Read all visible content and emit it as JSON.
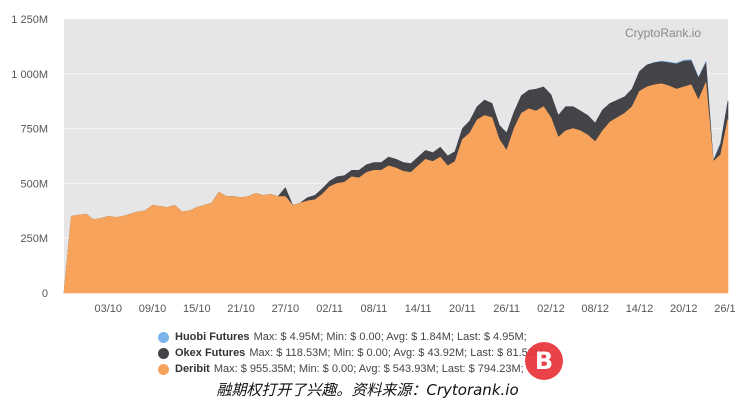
{
  "watermark_text": "CryptoRank.io",
  "caption": "融期权打开了兴趣。资料来源：Crytorank.io",
  "watermark_logo": {
    "icon": "bitcoin-b-icon",
    "color": "#e8333a"
  },
  "chart_data": {
    "type": "area",
    "stacked": true,
    "title": "",
    "xlabel": "",
    "ylabel": "",
    "ylim": [
      0,
      1250
    ],
    "yticks": [
      0,
      250,
      500,
      750,
      1000,
      1250
    ],
    "ytick_labels": [
      "0",
      "250M",
      "500M",
      "750M",
      "1 000M",
      "1 250M"
    ],
    "xlim": [
      0,
      90
    ],
    "xticks": [
      6,
      12,
      18,
      24,
      30,
      36,
      42,
      48,
      54,
      60,
      66,
      72,
      78,
      84,
      90
    ],
    "xtick_labels": [
      "03/10",
      "09/10",
      "15/10",
      "21/10",
      "27/10",
      "02/11",
      "08/11",
      "14/11",
      "20/11",
      "26/11",
      "02/12",
      "08/12",
      "14/12",
      "20/12",
      "26/12"
    ],
    "x": [
      0,
      1,
      2,
      3,
      4,
      5,
      6,
      7,
      8,
      9,
      10,
      11,
      12,
      13,
      14,
      15,
      16,
      17,
      18,
      19,
      20,
      21,
      22,
      23,
      24,
      25,
      26,
      27,
      28,
      29,
      30,
      31,
      32,
      33,
      34,
      35,
      36,
      37,
      38,
      39,
      40,
      41,
      42,
      43,
      44,
      45,
      46,
      47,
      48,
      49,
      50,
      51,
      52,
      53,
      54,
      55,
      56,
      57,
      58,
      59,
      60,
      61,
      62,
      63,
      64,
      65,
      66,
      67,
      68,
      69,
      70,
      71,
      72,
      73,
      74,
      75,
      76,
      77,
      78,
      79,
      80,
      81,
      82,
      83,
      84,
      85,
      86,
      87,
      88,
      89,
      90
    ],
    "grid": true,
    "legend_position": "bottom",
    "series": [
      {
        "name": "Huobi Futures",
        "color": "#7cb5ec",
        "stats": "Max: $ 4.95M; Min: $ 0.00; Avg: $ 1.84M; Last: $ 4.95M;",
        "values": [
          0,
          0,
          0,
          0,
          0,
          0,
          0,
          0,
          0,
          0,
          0,
          0,
          0,
          0,
          0,
          0,
          0,
          0,
          0,
          0,
          0,
          0,
          0,
          0,
          0,
          0,
          0,
          0,
          0,
          0,
          0,
          0,
          0,
          0,
          0,
          0,
          0,
          0,
          0,
          0,
          0,
          0,
          0,
          0,
          0,
          0,
          0,
          0,
          0,
          0,
          0,
          0,
          0,
          0,
          0,
          0,
          0,
          0,
          0,
          0,
          0,
          0,
          0,
          0,
          0,
          0,
          0,
          0,
          0,
          0,
          0,
          0,
          0,
          0,
          0,
          0,
          0,
          0,
          0,
          0,
          2,
          3,
          4,
          4,
          4,
          5,
          5,
          5,
          5,
          5,
          5
        ]
      },
      {
        "name": "Okex Futures",
        "color": "#434348",
        "stats": "Max: $ 118.53M; Min: $ 0.00; Avg: $ 43.92M; Last: $ 81.53M;",
        "values": [
          0,
          0,
          0,
          0,
          0,
          0,
          0,
          0,
          0,
          0,
          0,
          0,
          0,
          0,
          0,
          0,
          0,
          0,
          0,
          0,
          0,
          0,
          0,
          0,
          0,
          0,
          0,
          0,
          0,
          0,
          40,
          0,
          0,
          15,
          20,
          25,
          25,
          30,
          30,
          30,
          35,
          35,
          35,
          35,
          40,
          40,
          40,
          40,
          40,
          40,
          40,
          45,
          45,
          45,
          50,
          55,
          60,
          70,
          65,
          65,
          80,
          75,
          80,
          85,
          100,
          90,
          105,
          100,
          110,
          100,
          90,
          90,
          85,
          95,
          85,
          80,
          75,
          80,
          90,
          100,
          100,
          100,
          105,
          115,
          118,
          110,
          100,
          90,
          0,
          50,
          80
        ]
      },
      {
        "name": "Deribit",
        "color": "#f7a35c",
        "stats": "Max: $ 955.35M; Min: $ 0.00; Avg: $ 543.93M; Last: $ 794.23M;",
        "values": [
          0,
          350,
          355,
          360,
          335,
          340,
          350,
          345,
          350,
          360,
          370,
          375,
          400,
          395,
          390,
          400,
          370,
          375,
          390,
          400,
          410,
          460,
          440,
          440,
          435,
          440,
          455,
          445,
          450,
          440,
          440,
          400,
          410,
          420,
          425,
          450,
          485,
          500,
          505,
          530,
          525,
          550,
          560,
          560,
          580,
          570,
          555,
          550,
          580,
          610,
          600,
          620,
          580,
          600,
          700,
          730,
          790,
          810,
          800,
          700,
          650,
          750,
          820,
          840,
          830,
          850,
          800,
          710,
          740,
          750,
          740,
          720,
          690,
          740,
          780,
          800,
          820,
          850,
          920,
          940,
          950,
          955,
          945,
          930,
          940,
          950,
          880,
          960,
          600,
          630,
          794
        ]
      }
    ]
  }
}
